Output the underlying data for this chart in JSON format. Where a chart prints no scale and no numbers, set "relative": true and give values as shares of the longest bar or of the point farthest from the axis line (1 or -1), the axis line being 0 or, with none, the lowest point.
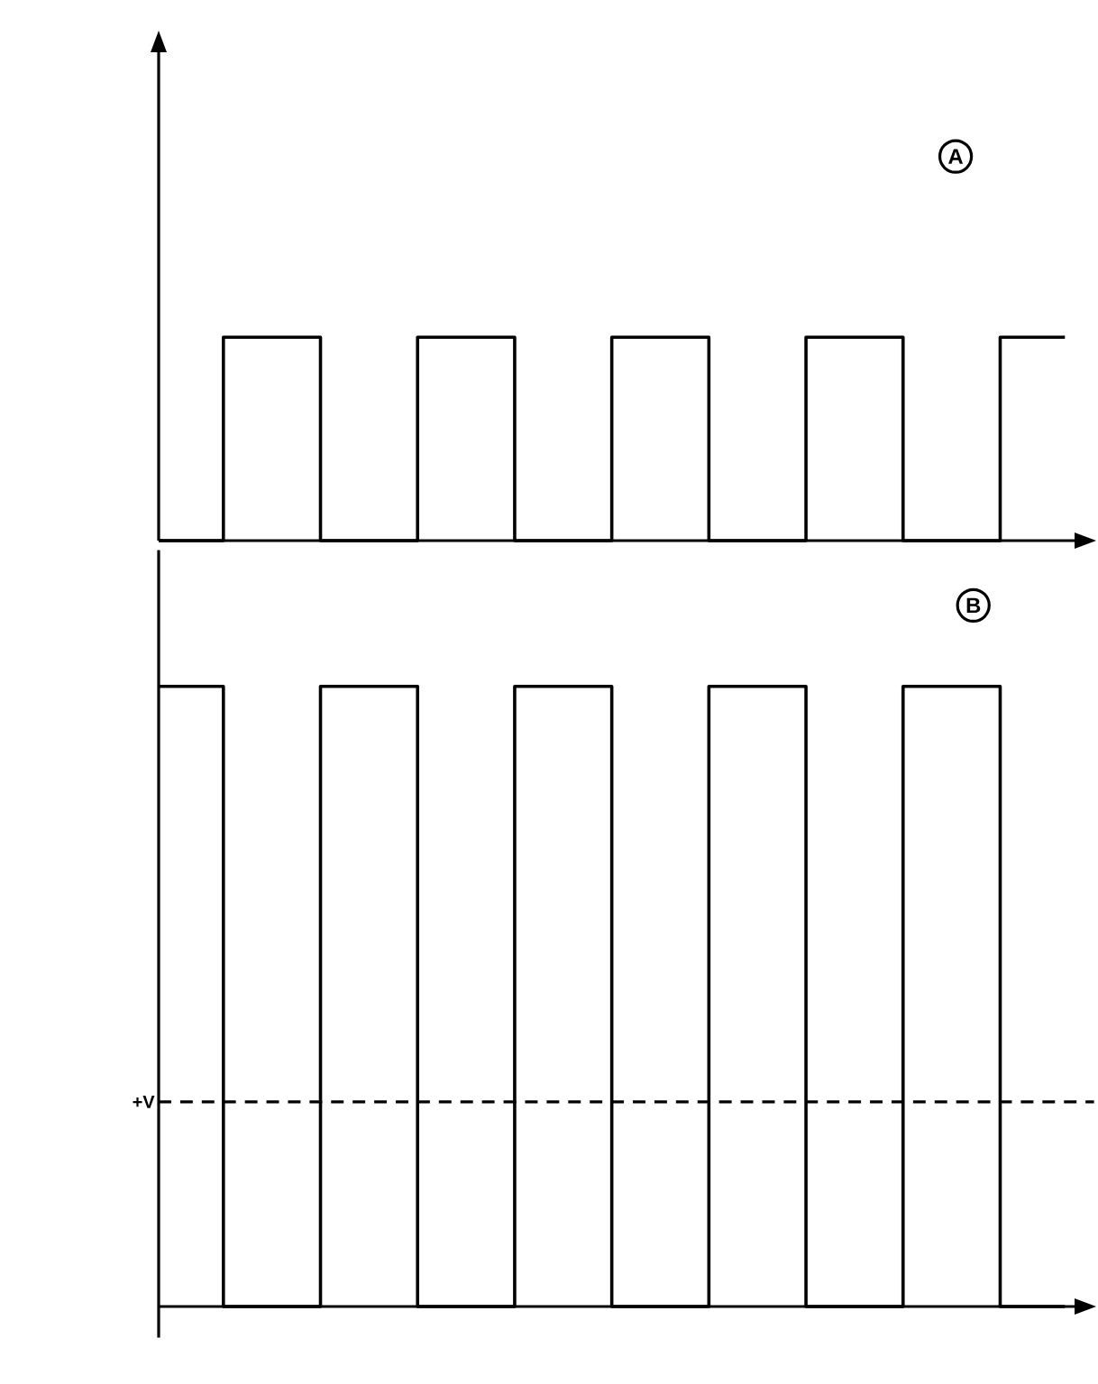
{
  "chart_data": [
    {
      "type": "step",
      "title": "A",
      "relative": true,
      "color": "#000000",
      "categories": [
        null,
        null,
        null,
        null,
        null,
        null,
        null,
        null,
        null,
        null,
        null,
        null,
        null,
        null,
        null,
        null,
        null,
        null,
        null,
        null,
        null,
        null,
        null,
        null,
        null,
        null,
        null,
        null,
        null
      ],
      "values": [
        0,
        0,
        1,
        1,
        1,
        0,
        0,
        0,
        1,
        1,
        1,
        0,
        0,
        0,
        1,
        1,
        1,
        0,
        0,
        0,
        1,
        1,
        1,
        0,
        0,
        0,
        1,
        1,
        1
      ]
    },
    {
      "type": "step",
      "title": "B",
      "relative": true,
      "color": "#000000",
      "categories": [
        null,
        null,
        null,
        null,
        null,
        null,
        null,
        null,
        null,
        null,
        null,
        null,
        null,
        null,
        null,
        null,
        null,
        null,
        null,
        null,
        null,
        null,
        null,
        null,
        null,
        null,
        null,
        null,
        null
      ],
      "values": [
        1,
        1,
        0,
        0,
        0,
        1,
        1,
        1,
        0,
        0,
        0,
        1,
        1,
        1,
        0,
        0,
        0,
        1,
        1,
        1,
        0,
        0,
        0,
        1,
        1,
        1,
        0,
        0,
        0
      ],
      "ref_lines": [
        {
          "axis": "y",
          "value": 0.33,
          "label": "+V",
          "line_style": "dashed"
        }
      ]
    }
  ]
}
